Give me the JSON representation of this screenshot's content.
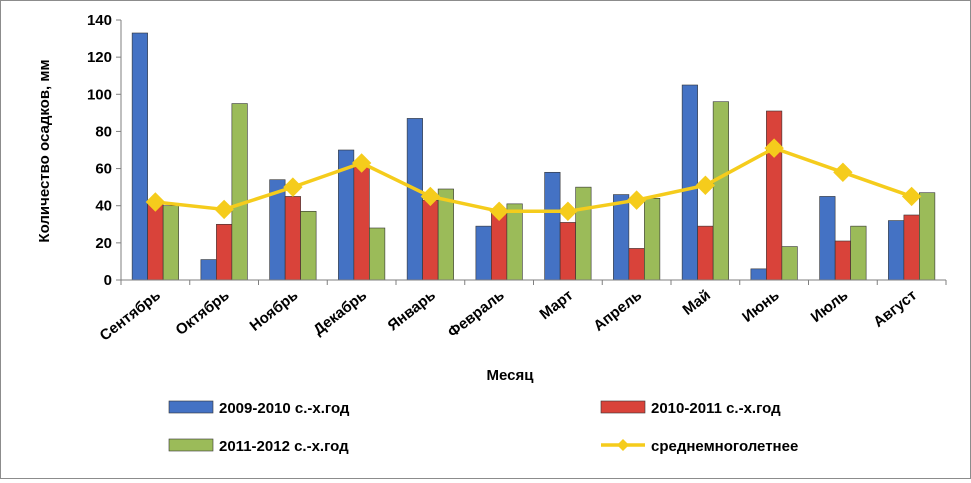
{
  "chart_data": {
    "type": "bar",
    "title": "",
    "xlabel": "Месяц",
    "ylabel": "Количество осадков, мм",
    "ylim": [
      0,
      140
    ],
    "yticks": [
      0,
      20,
      40,
      60,
      80,
      100,
      120,
      140
    ],
    "grid": false,
    "legend_position": "bottom",
    "categories": [
      "Сентябрь",
      "Октябрь",
      "Ноябрь",
      "Декабрь",
      "Январь",
      "Февраль",
      "Март",
      "Апрель",
      "Май",
      "Июнь",
      "Июль",
      "Август"
    ],
    "series": [
      {
        "name": "2009-2010 с.-х.год",
        "type": "bar",
        "color": "#4472C4",
        "values": [
          133,
          11,
          54,
          70,
          87,
          29,
          58,
          46,
          105,
          6,
          45,
          32
        ]
      },
      {
        "name": "2010-2011 с.-х.год",
        "type": "bar",
        "color": "#D9433A",
        "values": [
          41,
          30,
          45,
          61,
          43,
          37,
          31,
          17,
          29,
          91,
          21,
          35
        ]
      },
      {
        "name": "2011-2012 с.-х.год",
        "type": "bar",
        "color": "#9BBB59",
        "values": [
          40,
          95,
          37,
          28,
          49,
          41,
          50,
          44,
          96,
          18,
          29,
          47
        ]
      },
      {
        "name": "среднемноголетнее",
        "type": "line",
        "color": "#F5CC1C",
        "values": [
          42,
          38,
          50,
          63,
          45,
          37,
          37,
          43,
          51,
          71,
          58,
          45
        ]
      }
    ]
  }
}
